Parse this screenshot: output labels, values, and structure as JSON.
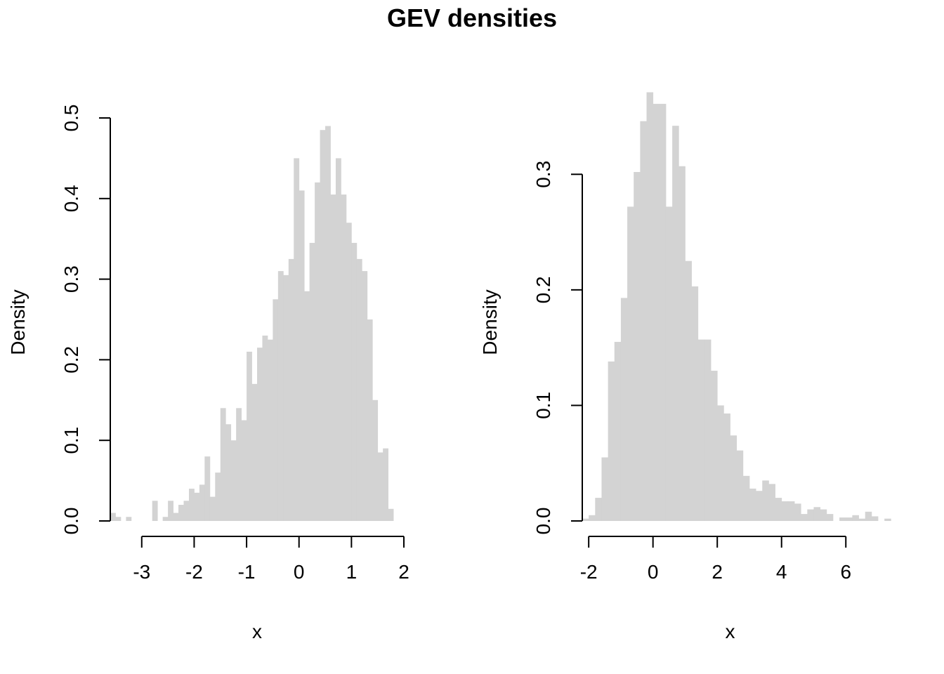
{
  "figure": {
    "title": "GEV densities"
  },
  "chart_data": [
    {
      "type": "bar",
      "subtype": "histogram",
      "title": "",
      "xlabel": "x",
      "ylabel": "Density",
      "bar_color": "#D3D3D3",
      "xlim": [
        -3.6,
        2.0
      ],
      "ylim": [
        0,
        0.5
      ],
      "x_ticks": [
        -3,
        -2,
        -1,
        0,
        1,
        2
      ],
      "y_ticks": [
        0.0,
        0.1,
        0.2,
        0.3,
        0.4,
        0.5
      ],
      "x_tick_labels": [
        "-3",
        "-2",
        "-1",
        "0",
        "1",
        "2"
      ],
      "y_tick_labels": [
        "0.0",
        "0.1",
        "0.2",
        "0.3",
        "0.4",
        "0.5"
      ],
      "bin_start": -3.6,
      "bin_width": 0.1,
      "values": [
        0.01,
        0.005,
        0,
        0.005,
        0,
        0,
        0,
        0,
        0.025,
        0,
        0.005,
        0.025,
        0.01,
        0.02,
        0.025,
        0.04,
        0.035,
        0.045,
        0.08,
        0.03,
        0.06,
        0.14,
        0.12,
        0.1,
        0.14,
        0.125,
        0.21,
        0.17,
        0.215,
        0.23,
        0.225,
        0.275,
        0.31,
        0.305,
        0.325,
        0.45,
        0.41,
        0.285,
        0.345,
        0.42,
        0.485,
        0.49,
        0.405,
        0.45,
        0.405,
        0.37,
        0.345,
        0.325,
        0.31,
        0.25,
        0.15,
        0.085,
        0.09,
        0.015
      ]
    },
    {
      "type": "bar",
      "subtype": "histogram",
      "title": "",
      "xlabel": "x",
      "ylabel": "Density",
      "bar_color": "#D3D3D3",
      "xlim": [
        -2.2,
        7.0
      ],
      "ylim": [
        0,
        0.35
      ],
      "x_ticks": [
        -2,
        0,
        2,
        4,
        6
      ],
      "y_ticks": [
        0.0,
        0.1,
        0.2,
        0.3
      ],
      "x_tick_labels": [
        "-2",
        "0",
        "2",
        "4",
        "6"
      ],
      "y_tick_labels": [
        "0.0",
        "0.1",
        "0.2",
        "0.3"
      ],
      "bin_start": -2.2,
      "bin_width": 0.2,
      "values": [
        0.002,
        0.005,
        0.02,
        0.055,
        0.138,
        0.155,
        0.193,
        0.272,
        0.302,
        0.346,
        0.371,
        0.361,
        0.361,
        0.272,
        0.342,
        0.307,
        0.225,
        0.203,
        0.157,
        0.157,
        0.13,
        0.1,
        0.093,
        0.074,
        0.061,
        0.039,
        0.028,
        0.026,
        0.035,
        0.032,
        0.02,
        0.017,
        0.017,
        0.015,
        0.006,
        0.01,
        0.012,
        0.01,
        0.006,
        0,
        0.003,
        0.003,
        0.005,
        0.002,
        0.008,
        0.004,
        0,
        0.002
      ]
    }
  ]
}
